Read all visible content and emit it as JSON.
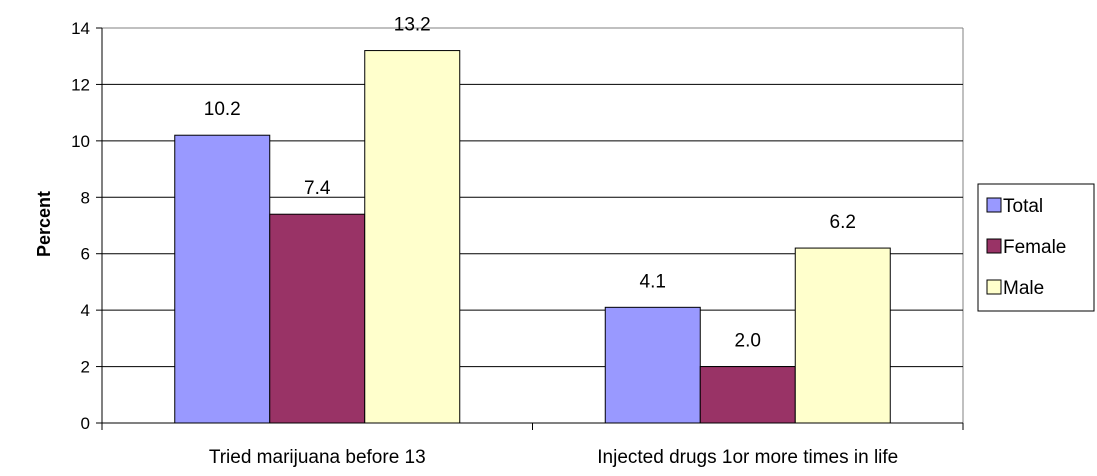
{
  "chart_data": {
    "type": "bar",
    "title": "",
    "xlabel": "",
    "ylabel": "Percent",
    "ylim": [
      0,
      14
    ],
    "yticks": [
      0,
      2,
      4,
      6,
      8,
      10,
      12,
      14
    ],
    "grid": true,
    "legend_position": "right",
    "categories": [
      "Tried marijuana before 13",
      "Injected drugs 1or more times in life"
    ],
    "series": [
      {
        "name": "Total",
        "color": "#9999ff",
        "values": [
          10.2,
          4.1
        ],
        "labels": [
          "10.2",
          "4.1"
        ]
      },
      {
        "name": "Female",
        "color": "#993366",
        "values": [
          7.4,
          2.0
        ],
        "labels": [
          "7.4",
          "2.0"
        ]
      },
      {
        "name": "Male",
        "color": "#ffffcc",
        "values": [
          13.2,
          6.2
        ],
        "labels": [
          "13.2",
          "6.2"
        ]
      }
    ]
  }
}
